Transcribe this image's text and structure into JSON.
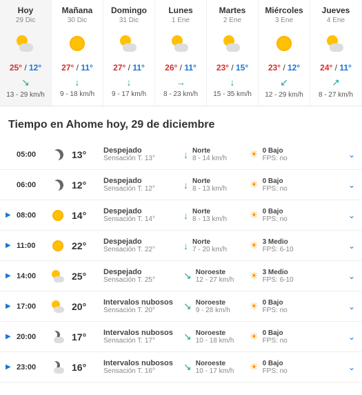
{
  "days": [
    {
      "name": "Hoy",
      "date": "29 Dic",
      "icon": "partly",
      "hi": "25°",
      "lo": "12°",
      "wind_dir": "↘",
      "wind": "13 - 29 km/h",
      "today": true
    },
    {
      "name": "Mañana",
      "date": "30 Dic",
      "icon": "sun",
      "hi": "27°",
      "lo": "11°",
      "wind_dir": "↓",
      "wind": "9 - 18 km/h"
    },
    {
      "name": "Domingo",
      "date": "31 Dic",
      "icon": "partly",
      "hi": "27°",
      "lo": "11°",
      "wind_dir": "↓",
      "wind": "9 - 17 km/h"
    },
    {
      "name": "Lunes",
      "date": "1 Ene",
      "icon": "partly",
      "hi": "26°",
      "lo": "11°",
      "wind_dir": "→",
      "wind": "8 - 23 km/h"
    },
    {
      "name": "Martes",
      "date": "2 Ene",
      "icon": "partly",
      "hi": "23°",
      "lo": "15°",
      "wind_dir": "↓",
      "wind": "15 - 35 km/h"
    },
    {
      "name": "Miércoles",
      "date": "3 Ene",
      "icon": "sun",
      "hi": "23°",
      "lo": "12°",
      "wind_dir": "↙",
      "wind": "12 - 29 km/h"
    },
    {
      "name": "Jueves",
      "date": "4 Ene",
      "icon": "partly",
      "hi": "24°",
      "lo": "11°",
      "wind_dir": "↗",
      "wind": "8 - 27 km/h"
    }
  ],
  "section_title": "Tiempo en Ahome hoy, 29 de diciembre",
  "hours": [
    {
      "chev": false,
      "time": "05:00",
      "icon": "moon",
      "temp": "13°",
      "cond": "Despejado",
      "feel": "Sensación T. 13°",
      "wdir": "Norte",
      "wspd": "8 - 14 km/h",
      "warr": "↓",
      "uv": "0 Bajo",
      "fps": "FPS: no"
    },
    {
      "chev": false,
      "time": "06:00",
      "icon": "moon",
      "temp": "12°",
      "cond": "Despejado",
      "feel": "Sensación T. 12°",
      "wdir": "Norte",
      "wspd": "8 - 13 km/h",
      "warr": "↓",
      "uv": "0 Bajo",
      "fps": "FPS: no"
    },
    {
      "chev": true,
      "time": "08:00",
      "icon": "sun",
      "temp": "14°",
      "cond": "Despejado",
      "feel": "Sensación T. 14°",
      "wdir": "Norte",
      "wspd": "8 - 13 km/h",
      "warr": "↓",
      "uv": "0 Bajo",
      "fps": "FPS: no"
    },
    {
      "chev": true,
      "time": "11:00",
      "icon": "sun",
      "temp": "22°",
      "cond": "Despejado",
      "feel": "Sensación T. 22°",
      "wdir": "Norte",
      "wspd": "7 - 20 km/h",
      "warr": "↓",
      "uv": "3 Medio",
      "fps": "FPS: 6-10"
    },
    {
      "chev": true,
      "time": "14:00",
      "icon": "partly",
      "temp": "25°",
      "cond": "Despejado",
      "feel": "Sensación T. 25°",
      "wdir": "Noroeste",
      "wspd": "12 - 27 km/h",
      "warr": "↘",
      "uv": "3 Medio",
      "fps": "FPS: 6-10"
    },
    {
      "chev": true,
      "time": "17:00",
      "icon": "partly",
      "temp": "20°",
      "cond": "Intervalos nubosos",
      "feel": "Sensación T. 20°",
      "wdir": "Noroeste",
      "wspd": "9 - 28 km/h",
      "warr": "↘",
      "uv": "0 Bajo",
      "fps": "FPS: no"
    },
    {
      "chev": true,
      "time": "20:00",
      "icon": "cloudnight",
      "temp": "17°",
      "cond": "Intervalos nubosos",
      "feel": "Sensación T. 17°",
      "wdir": "Noroeste",
      "wspd": "10 - 18 km/h",
      "warr": "↘",
      "uv": "0 Bajo",
      "fps": "FPS: no"
    },
    {
      "chev": true,
      "time": "23:00",
      "icon": "cloudnight",
      "temp": "16°",
      "cond": "Intervalos nubosos",
      "feel": "Sensación T. 16°",
      "wdir": "Noroeste",
      "wspd": "10 - 17 km/h",
      "warr": "↘",
      "uv": "0 Bajo",
      "fps": "FPS: no"
    }
  ],
  "colors": {
    "accent_hi": "#d32f2f",
    "accent_lo": "#1976d2",
    "wind": "#26a69a",
    "uv": "#ff9800"
  }
}
